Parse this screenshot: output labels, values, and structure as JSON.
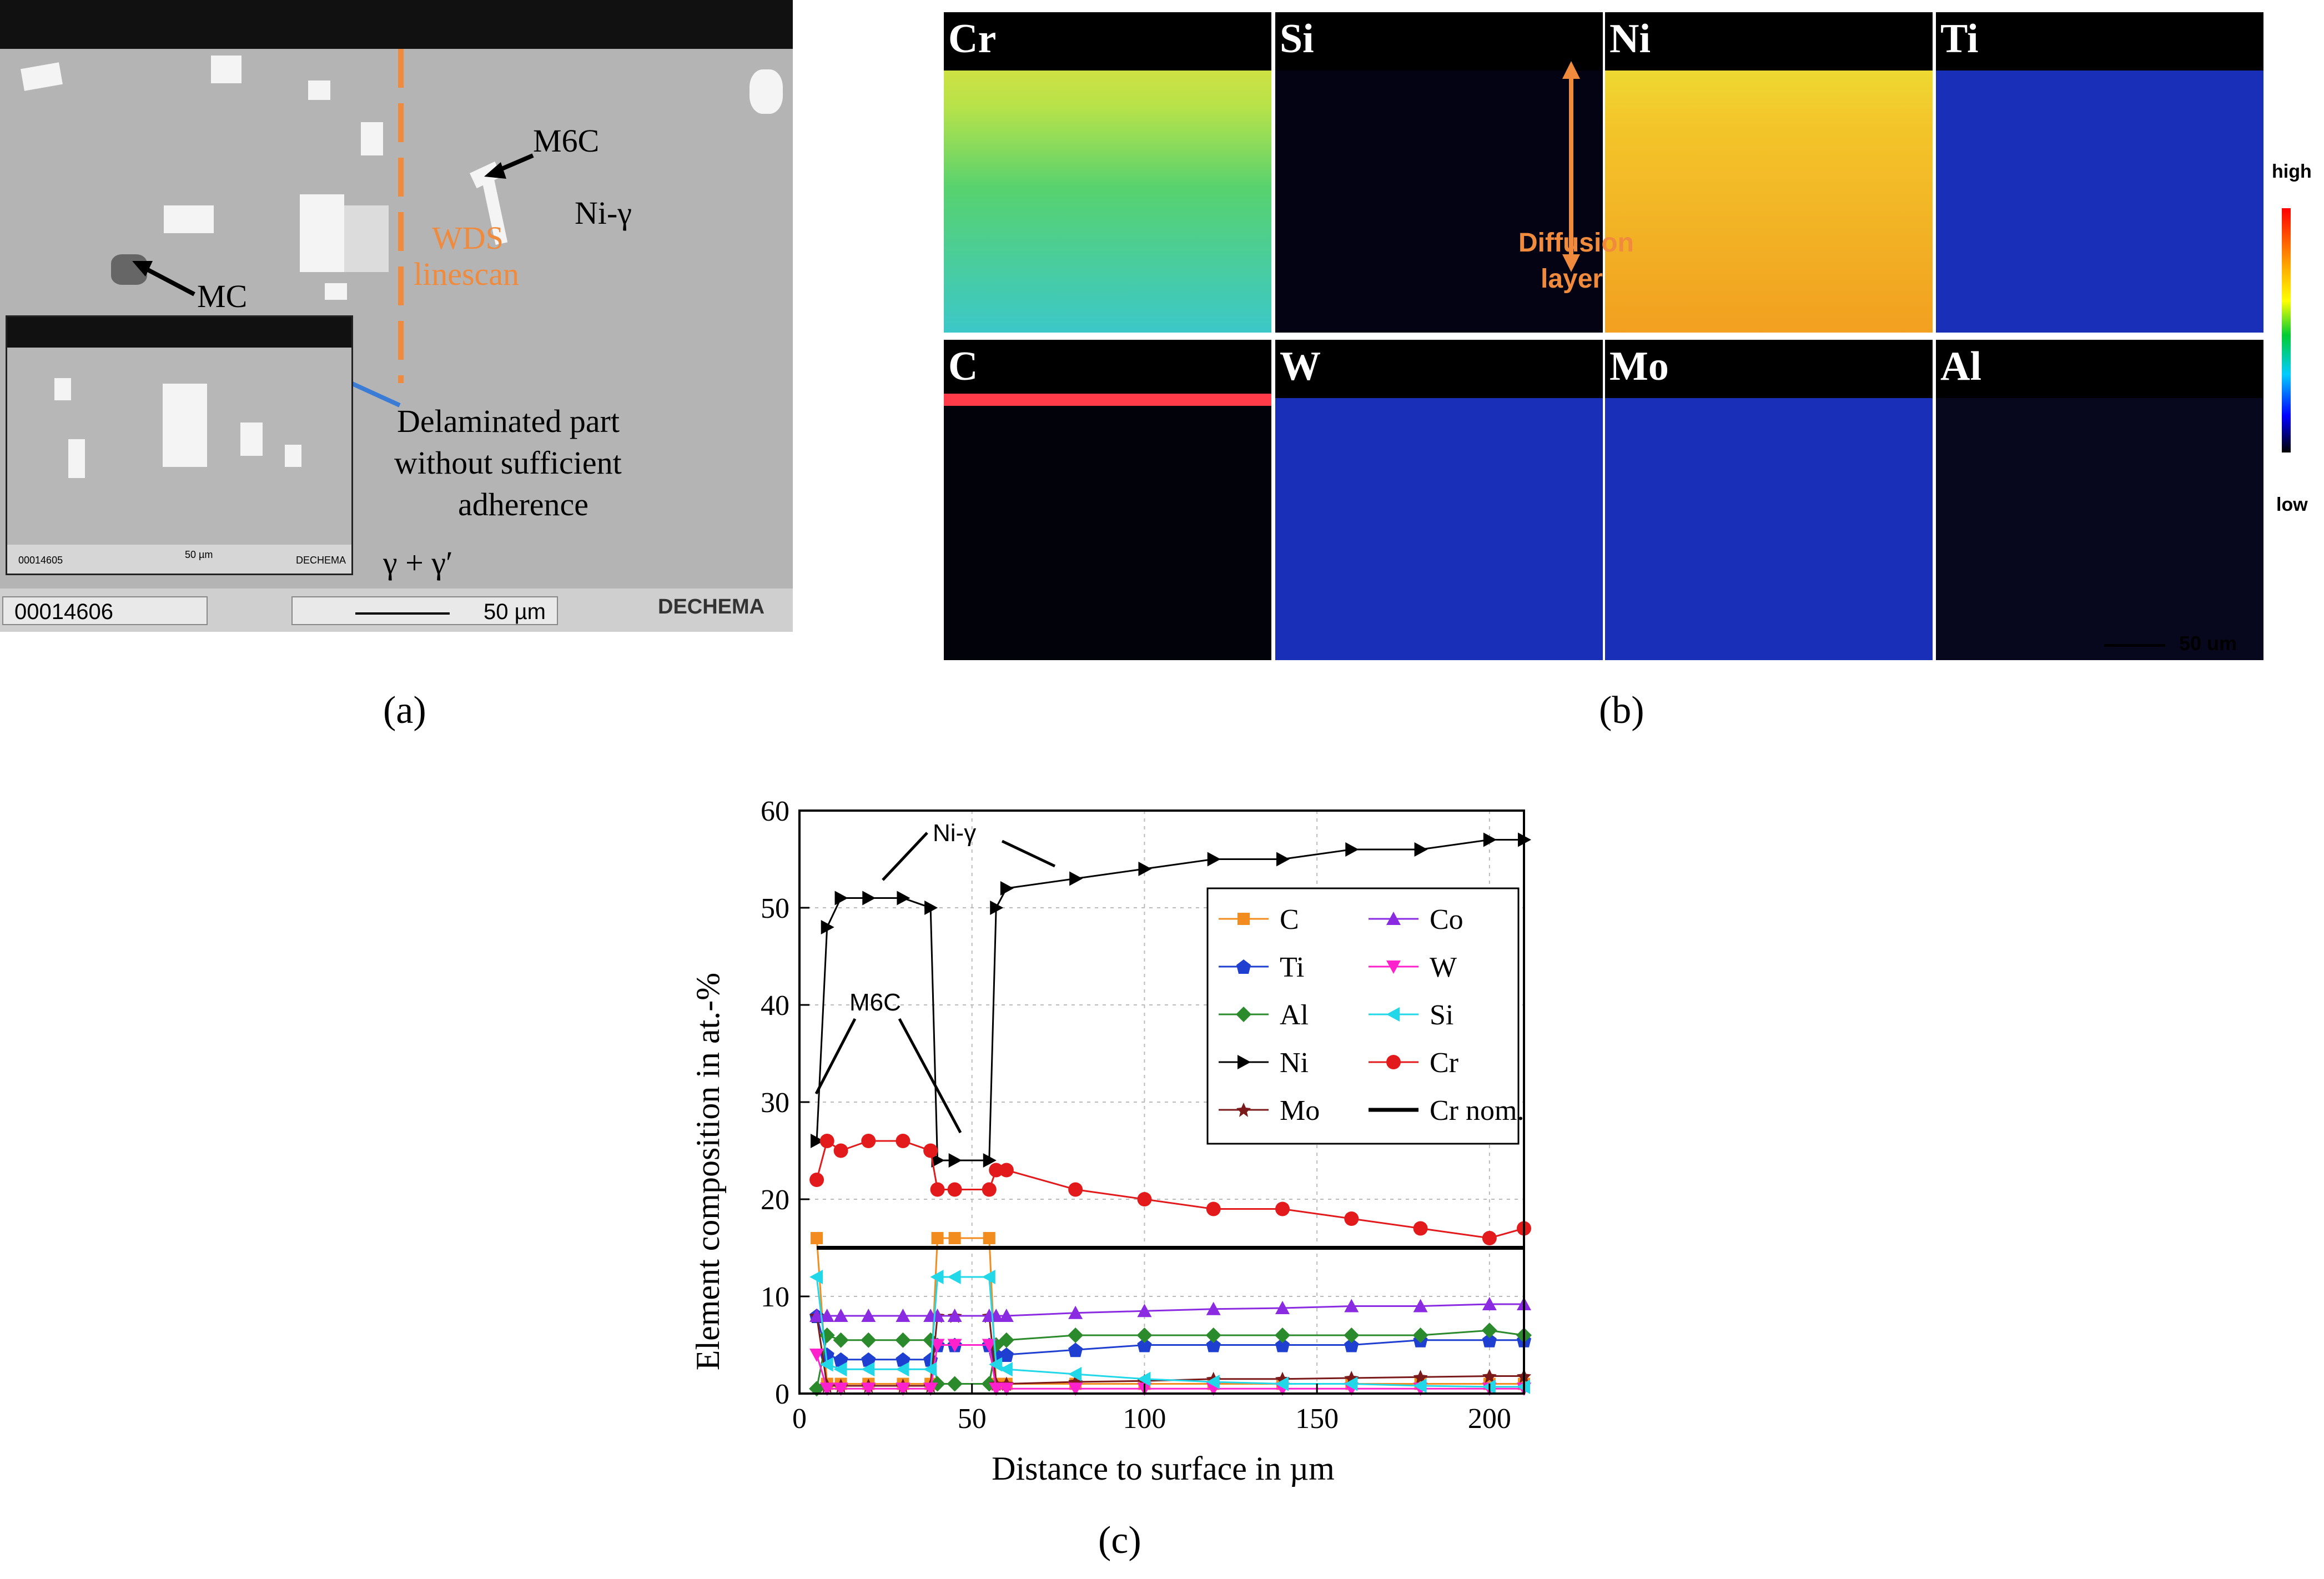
{
  "panel_a": {
    "caption": "(a)",
    "labels": {
      "m6c": "M6C",
      "ni_gamma": "Ni-γ",
      "wds": "WDS",
      "linescan": "linescan",
      "mc": "MC",
      "delam_line1": "Delaminated part",
      "delam_line2": "without sufficient",
      "delam_line3": "adherence",
      "gamma_prime": "γ + γ′"
    },
    "info": {
      "id": "00014606",
      "scale": "50 µm",
      "logo": "DECHEMA",
      "inset_id": "00014605",
      "inset_scale": "50 µm",
      "inset_logo": "DECHEMA"
    },
    "colors": {
      "wds_line": "#f08a3c",
      "arrow": "#3a7bd5"
    }
  },
  "panel_b": {
    "caption": "(b)",
    "maps_row1": [
      "Cr",
      "Si",
      "Ni",
      "Ti"
    ],
    "maps_row2": [
      "C",
      "W",
      "Mo",
      "Al"
    ],
    "annotation_line1": "Diffusion",
    "annotation_line2": "layer",
    "legend_high": "high",
    "legend_low": "low",
    "scale": "50 um"
  },
  "panel_c": {
    "caption": "(c)",
    "annotations": {
      "ni_gamma": "Ni-γ",
      "m6c": "M6C"
    }
  },
  "chart_data": {
    "type": "line",
    "title": "",
    "xlabel": "Distance to surface in µm",
    "ylabel": "Element composition in at.-%",
    "xlim": [
      0,
      210
    ],
    "ylim": [
      0,
      60
    ],
    "xticks": [
      0,
      50,
      100,
      150,
      200
    ],
    "yticks": [
      0,
      10,
      20,
      30,
      40,
      50,
      60
    ],
    "x": [
      5,
      8,
      12,
      20,
      30,
      38,
      40,
      45,
      55,
      57,
      60,
      80,
      100,
      120,
      140,
      160,
      180,
      200,
      210
    ],
    "series": [
      {
        "name": "C",
        "color": "#f28c1e",
        "marker": "square",
        "values": [
          16,
          1,
          1,
          1,
          1,
          1,
          16,
          16,
          16,
          1,
          1,
          1,
          1,
          1,
          1,
          1,
          1,
          1,
          1
        ]
      },
      {
        "name": "Ti",
        "color": "#1f3fd1",
        "marker": "pentagon",
        "values": [
          8,
          4,
          3.5,
          3.5,
          3.5,
          3.5,
          5,
          5,
          5,
          4,
          4,
          4.5,
          5,
          5,
          5,
          5,
          5.5,
          5.5,
          5.5
        ]
      },
      {
        "name": "Al",
        "color": "#2b8a2b",
        "marker": "diamond",
        "values": [
          0.5,
          6,
          5.5,
          5.5,
          5.5,
          5.5,
          1,
          1,
          1,
          5,
          5.5,
          6,
          6,
          6,
          6,
          6,
          6,
          6.5,
          6
        ]
      },
      {
        "name": "Ni",
        "color": "#000000",
        "marker": "triangle-right",
        "values": [
          26,
          48,
          51,
          51,
          51,
          50,
          24,
          24,
          24,
          50,
          52,
          53,
          54,
          55,
          55,
          56,
          56,
          57,
          57
        ]
      },
      {
        "name": "Mo",
        "color": "#7a1a1a",
        "marker": "star",
        "values": [
          8,
          0.8,
          0.8,
          0.8,
          0.8,
          0.8,
          8,
          8,
          8,
          1,
          1,
          1.2,
          1.3,
          1.5,
          1.5,
          1.6,
          1.7,
          1.8,
          1.8
        ]
      },
      {
        "name": "Co",
        "color": "#8a2be2",
        "marker": "triangle-up",
        "values": [
          8,
          8,
          8,
          8,
          8,
          8,
          8,
          8,
          8,
          8,
          8,
          8.3,
          8.5,
          8.7,
          8.8,
          9,
          9,
          9.2,
          9.2
        ]
      },
      {
        "name": "W",
        "color": "#ff22cc",
        "marker": "triangle-down",
        "values": [
          4,
          0.5,
          0.5,
          0.5,
          0.5,
          0.5,
          5,
          5,
          5,
          0.5,
          0.5,
          0.5,
          0.5,
          0.5,
          0.5,
          0.5,
          0.5,
          0.5,
          0.5
        ]
      },
      {
        "name": "Si",
        "color": "#22d8e8",
        "marker": "triangle-left",
        "values": [
          12,
          3,
          2.5,
          2.5,
          2.5,
          2.5,
          12,
          12,
          12,
          3,
          2.5,
          2,
          1.5,
          1.2,
          1,
          1,
          0.8,
          0.7,
          0.7
        ]
      },
      {
        "name": "Cr",
        "color": "#e31a1c",
        "marker": "circle",
        "values": [
          22,
          26,
          25,
          26,
          26,
          25,
          21,
          21,
          21,
          23,
          23,
          21,
          20,
          19,
          19,
          18,
          17,
          16,
          17
        ]
      },
      {
        "name": "Cr nom.",
        "color": "#000000",
        "marker": "none",
        "values": [
          15,
          15,
          15,
          15,
          15,
          15,
          15,
          15,
          15,
          15,
          15,
          15,
          15,
          15,
          15,
          15,
          15,
          15,
          15
        ]
      }
    ]
  }
}
